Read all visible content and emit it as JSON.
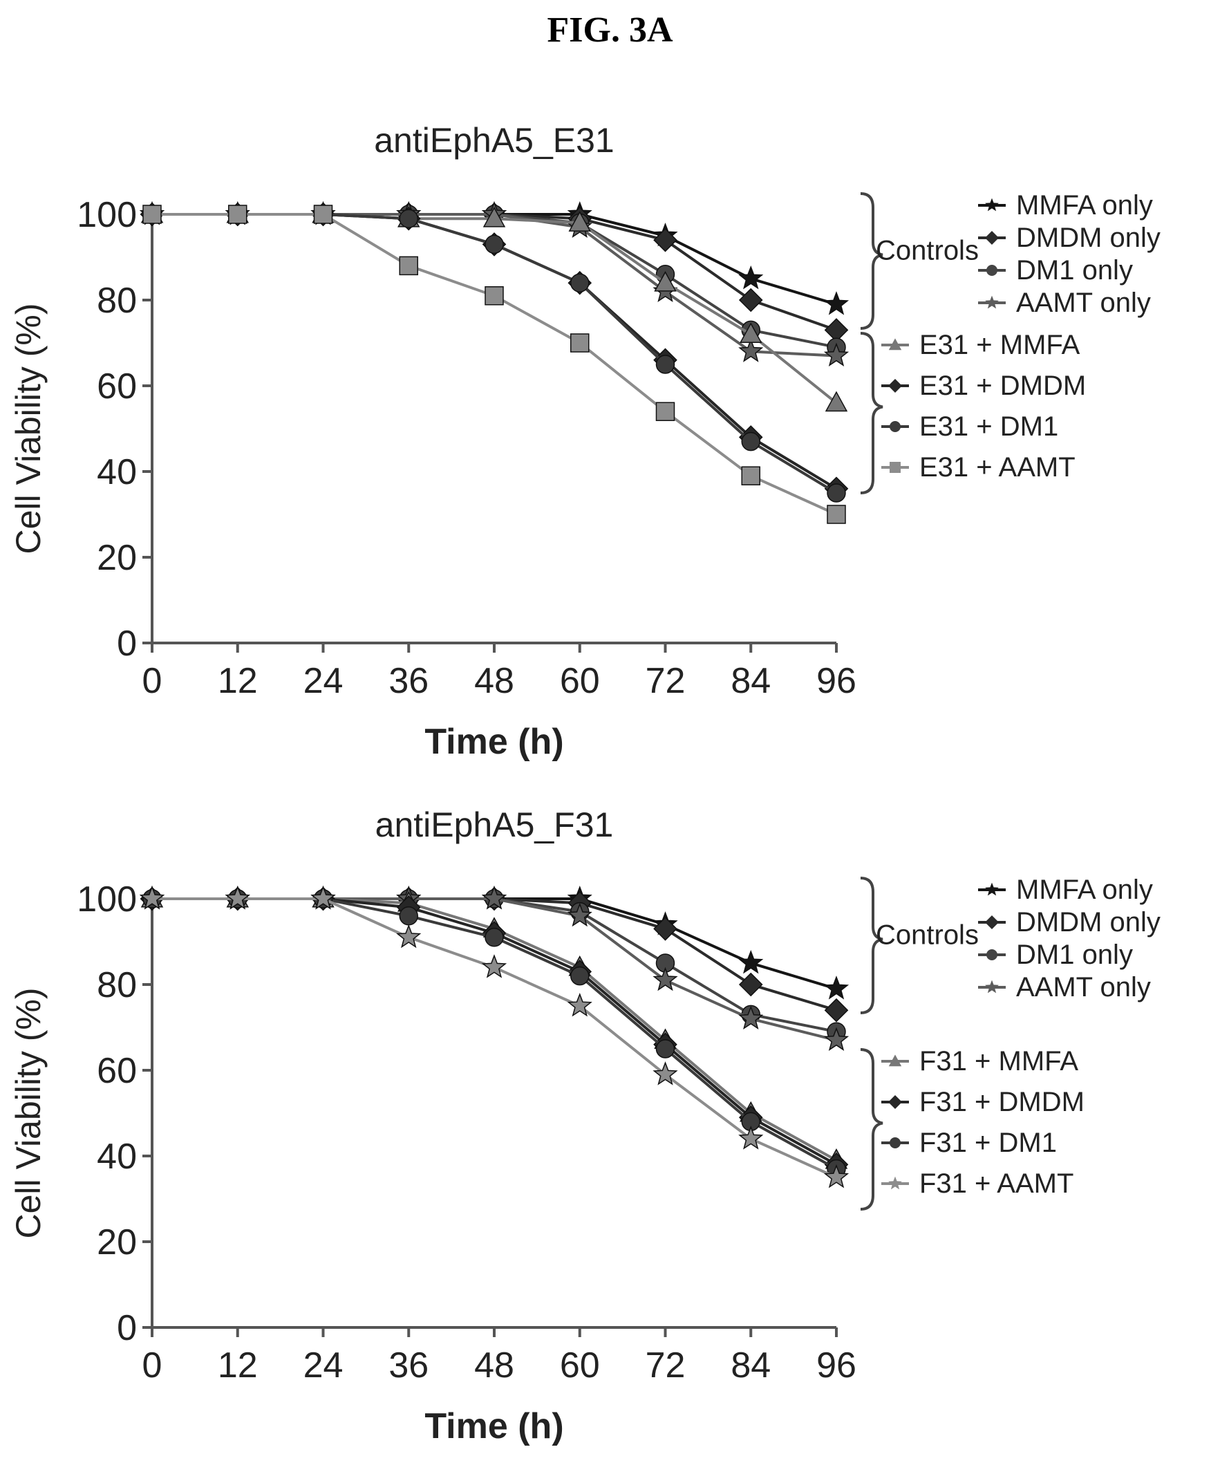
{
  "figure_title": "FIG. 3A",
  "chart_data": [
    {
      "type": "line",
      "title": "antiEphA5_E31",
      "xlabel": "Time (h)",
      "ylabel": "Cell Viability (%)",
      "x": [
        0,
        12,
        24,
        36,
        48,
        60,
        72,
        84,
        96
      ],
      "xlim": [
        0,
        96
      ],
      "ylim": [
        0,
        100
      ],
      "yticks": [
        0,
        20,
        40,
        60,
        80,
        100
      ],
      "group_labels": {
        "controls": "Controls"
      },
      "series": [
        {
          "name": "MMFA only",
          "group": "controls",
          "marker": "star",
          "values": [
            100,
            100,
            100,
            100,
            100,
            100,
            95,
            85,
            79
          ]
        },
        {
          "name": "DMDM only",
          "group": "controls",
          "marker": "diamond",
          "values": [
            100,
            100,
            100,
            100,
            100,
            99,
            94,
            80,
            73
          ]
        },
        {
          "name": "DM1 only",
          "group": "controls",
          "marker": "circle",
          "values": [
            100,
            100,
            100,
            100,
            100,
            98,
            86,
            73,
            69
          ]
        },
        {
          "name": "AAMT only",
          "group": "controls",
          "marker": "star",
          "values": [
            100,
            100,
            100,
            100,
            100,
            97,
            82,
            68,
            67
          ]
        },
        {
          "name": "E31 + MMFA",
          "group": "treated",
          "marker": "triangle",
          "values": [
            100,
            100,
            100,
            99,
            99,
            98,
            84,
            72,
            56
          ]
        },
        {
          "name": "E31 + DMDM",
          "group": "treated",
          "marker": "diamond",
          "values": [
            100,
            100,
            100,
            99,
            93,
            84,
            66,
            48,
            36
          ]
        },
        {
          "name": "E31 + DM1",
          "group": "treated",
          "marker": "circle",
          "values": [
            100,
            100,
            100,
            99,
            93,
            84,
            65,
            47,
            35
          ]
        },
        {
          "name": "E31 + AAMT",
          "group": "treated",
          "marker": "square",
          "values": [
            100,
            100,
            100,
            88,
            81,
            70,
            54,
            39,
            30
          ]
        }
      ]
    },
    {
      "type": "line",
      "title": "antiEphA5_F31",
      "xlabel": "Time (h)",
      "ylabel": "Cell Viability (%)",
      "x": [
        0,
        12,
        24,
        36,
        48,
        60,
        72,
        84,
        96
      ],
      "xlim": [
        0,
        96
      ],
      "ylim": [
        0,
        100
      ],
      "yticks": [
        0,
        20,
        40,
        60,
        80,
        100
      ],
      "group_labels": {
        "controls": "Controls"
      },
      "series": [
        {
          "name": "MMFA only",
          "group": "controls",
          "marker": "star",
          "values": [
            100,
            100,
            100,
            100,
            100,
            100,
            94,
            85,
            79
          ]
        },
        {
          "name": "DMDM only",
          "group": "controls",
          "marker": "diamond",
          "values": [
            100,
            100,
            100,
            100,
            100,
            99,
            93,
            80,
            74
          ]
        },
        {
          "name": "DM1 only",
          "group": "controls",
          "marker": "circle",
          "values": [
            100,
            100,
            100,
            100,
            100,
            97,
            85,
            73,
            69
          ]
        },
        {
          "name": "AAMT only",
          "group": "controls",
          "marker": "star",
          "values": [
            100,
            100,
            100,
            100,
            100,
            96,
            81,
            72,
            67
          ]
        },
        {
          "name": "F31 + MMFA",
          "group": "treated",
          "marker": "triangle",
          "values": [
            100,
            100,
            100,
            99,
            93,
            84,
            67,
            50,
            39
          ]
        },
        {
          "name": "F31 + DMDM",
          "group": "treated",
          "marker": "diamond",
          "values": [
            100,
            100,
            100,
            98,
            92,
            83,
            66,
            49,
            38
          ]
        },
        {
          "name": "F31 + DM1",
          "group": "treated",
          "marker": "circle",
          "values": [
            100,
            100,
            100,
            96,
            91,
            82,
            65,
            48,
            37
          ]
        },
        {
          "name": "F31 + AAMT",
          "group": "treated",
          "marker": "star",
          "values": [
            100,
            100,
            100,
            91,
            84,
            75,
            59,
            44,
            35
          ]
        }
      ]
    }
  ]
}
